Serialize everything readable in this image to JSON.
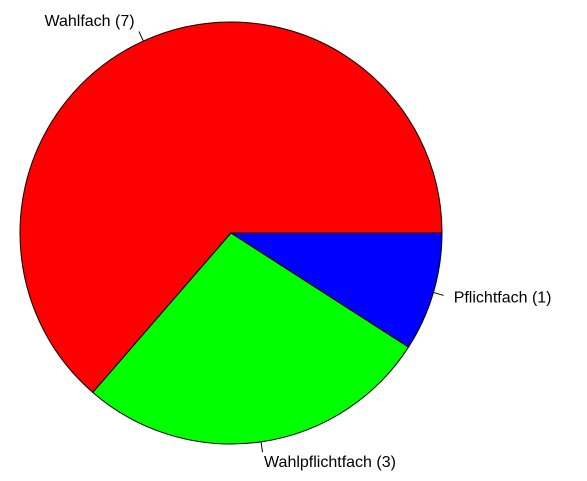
{
  "chart_data": {
    "type": "pie",
    "categories": [
      "Wahlfach (7)",
      "Wahlpflichtfach (3)",
      "Pflichtfach (1)"
    ],
    "values": [
      7,
      3,
      1
    ],
    "colors": [
      "#ff0000",
      "#00ff00",
      "#0000ff"
    ]
  }
}
